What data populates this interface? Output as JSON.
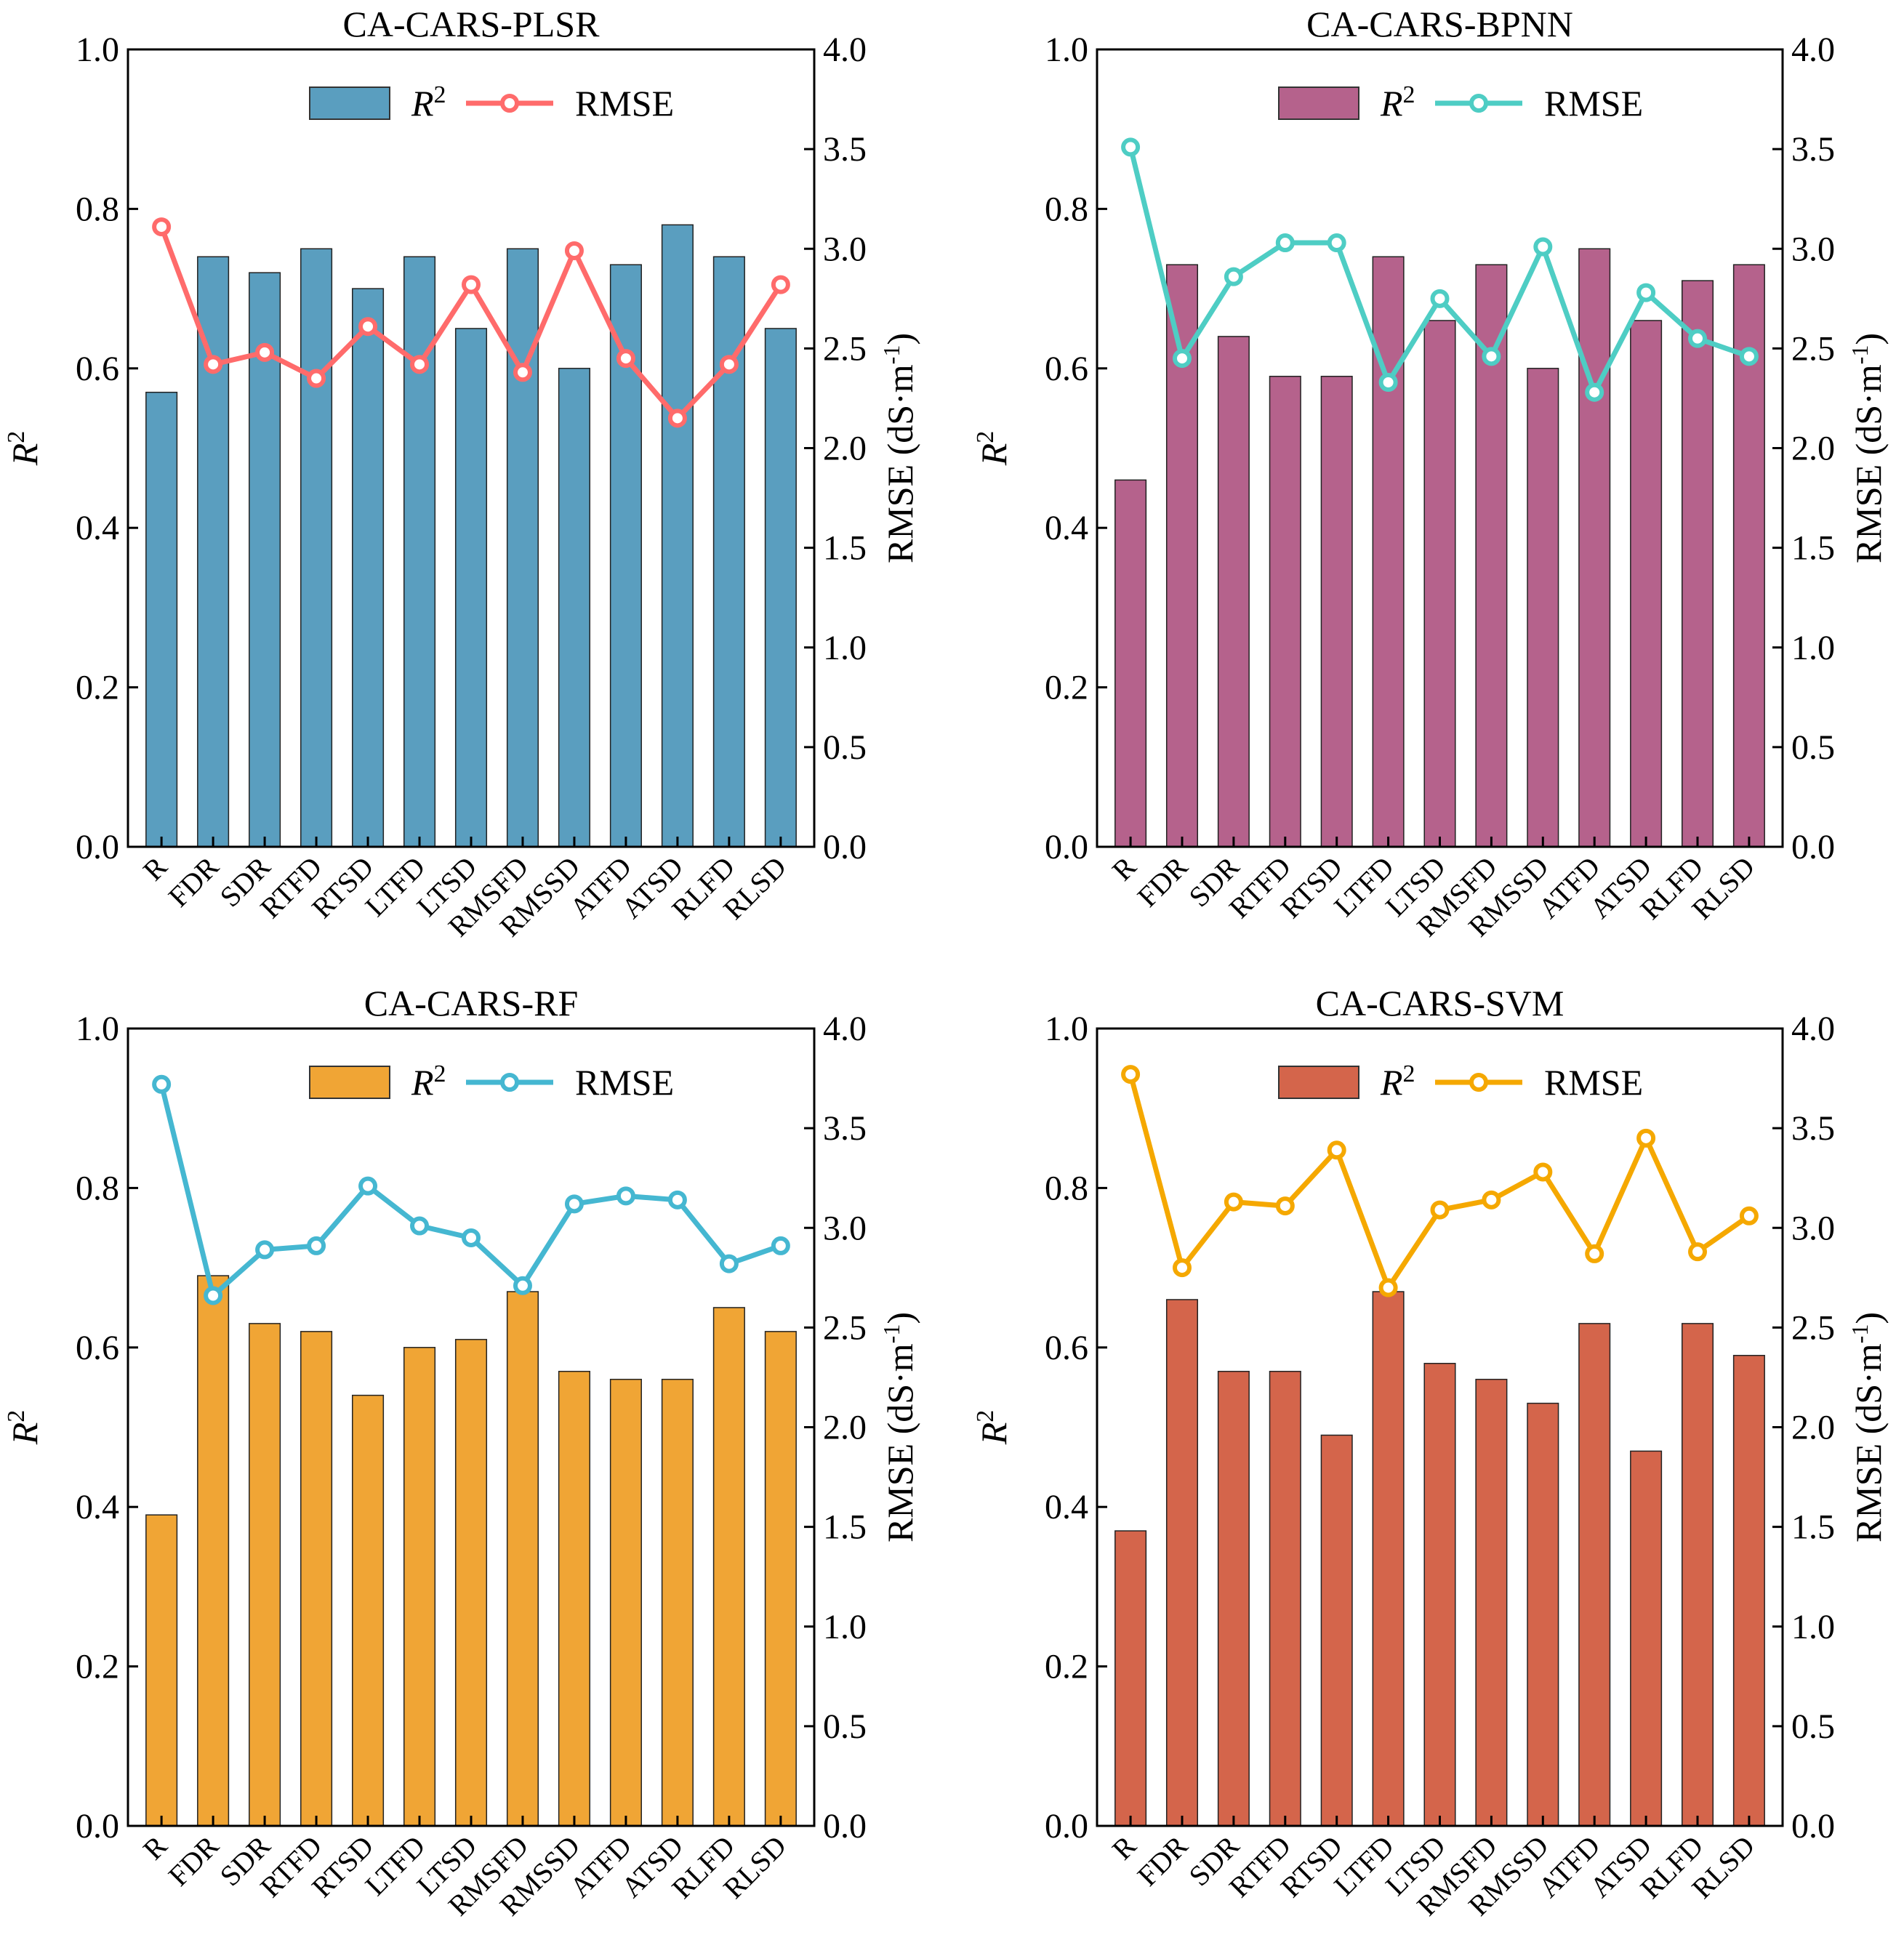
{
  "chart_data": [
    {
      "type": "bar",
      "title": "CA-CARS-PLSR",
      "categories": [
        "R",
        "FDR",
        "SDR",
        "RTFD",
        "RTSD",
        "LTFD",
        "LTSD",
        "RMSFD",
        "RMSSD",
        "ATFD",
        "ATSD",
        "RLFD",
        "RLSD"
      ],
      "series": [
        {
          "name": "R2",
          "label": "R",
          "sup": "2",
          "kind": "bar",
          "axis": "left",
          "color": "#5a9ebf",
          "values": [
            0.57,
            0.74,
            0.72,
            0.75,
            0.7,
            0.74,
            0.65,
            0.75,
            0.6,
            0.73,
            0.78,
            0.74,
            0.65
          ]
        },
        {
          "name": "RMSE",
          "label": "RMSE",
          "kind": "line",
          "axis": "right",
          "color": "#ff6b6b",
          "values": [
            3.11,
            2.42,
            2.48,
            2.35,
            2.61,
            2.42,
            2.82,
            2.38,
            2.99,
            2.45,
            2.15,
            2.42,
            2.82
          ]
        }
      ],
      "ylabel": "R2",
      "ylabel_sup": "2",
      "ylim": [
        0,
        1.0
      ],
      "yticks": [
        "0.0",
        "0.2",
        "0.4",
        "0.6",
        "0.8",
        "1.0"
      ],
      "y2label": "RMSE (dS·m",
      "y2label_sup": "-1",
      "y2label_end": ")",
      "y2lim": [
        0,
        4.0
      ],
      "y2ticks": [
        "0.0",
        "0.5",
        "1.0",
        "1.5",
        "2.0",
        "2.5",
        "3.0",
        "3.5",
        "4.0"
      ],
      "legend": "top-right",
      "grid": false
    },
    {
      "type": "bar",
      "title": "CA-CARS-BPNN",
      "categories": [
        "R",
        "FDR",
        "SDR",
        "RTFD",
        "RTSD",
        "LTFD",
        "LTSD",
        "RMSFD",
        "RMSSD",
        "ATFD",
        "ATSD",
        "RLFD",
        "RLSD"
      ],
      "series": [
        {
          "name": "R2",
          "label": "R",
          "sup": "2",
          "kind": "bar",
          "axis": "left",
          "color": "#b5628c",
          "values": [
            0.46,
            0.73,
            0.64,
            0.59,
            0.59,
            0.74,
            0.66,
            0.73,
            0.6,
            0.75,
            0.66,
            0.71,
            0.73
          ]
        },
        {
          "name": "RMSE",
          "label": "RMSE",
          "kind": "line",
          "axis": "right",
          "color": "#4ecdc4",
          "values": [
            3.51,
            2.45,
            2.86,
            3.03,
            3.03,
            2.33,
            2.75,
            2.46,
            3.01,
            2.28,
            2.78,
            2.55,
            2.46
          ]
        }
      ],
      "ylabel": "R2",
      "ylabel_sup": "2",
      "ylim": [
        0,
        1.0
      ],
      "yticks": [
        "0.0",
        "0.2",
        "0.4",
        "0.6",
        "0.8",
        "1.0"
      ],
      "y2label": "RMSE (dS·m",
      "y2label_sup": "-1",
      "y2label_end": ")",
      "y2lim": [
        0,
        4.0
      ],
      "y2ticks": [
        "0.0",
        "0.5",
        "1.0",
        "1.5",
        "2.0",
        "2.5",
        "3.0",
        "3.5",
        "4.0"
      ],
      "legend": "top-right",
      "grid": false
    },
    {
      "type": "bar",
      "title": "CA-CARS-RF",
      "categories": [
        "R",
        "FDR",
        "SDR",
        "RTFD",
        "RTSD",
        "LTFD",
        "LTSD",
        "RMSFD",
        "RMSSD",
        "ATFD",
        "ATSD",
        "RLFD",
        "RLSD"
      ],
      "series": [
        {
          "name": "R2",
          "label": "R",
          "sup": "2",
          "kind": "bar",
          "axis": "left",
          "color": "#f0a535",
          "values": [
            0.39,
            0.69,
            0.63,
            0.62,
            0.54,
            0.6,
            0.61,
            0.67,
            0.57,
            0.56,
            0.56,
            0.65,
            0.62
          ]
        },
        {
          "name": "RMSE",
          "label": "RMSE",
          "kind": "line",
          "axis": "right",
          "color": "#45b7d1",
          "values": [
            3.72,
            2.66,
            2.89,
            2.91,
            3.21,
            3.01,
            2.95,
            2.71,
            3.12,
            3.16,
            3.14,
            2.82,
            2.91
          ]
        }
      ],
      "ylabel": "R2",
      "ylabel_sup": "2",
      "ylim": [
        0,
        1.0
      ],
      "yticks": [
        "0.0",
        "0.2",
        "0.4",
        "0.6",
        "0.8",
        "1.0"
      ],
      "y2label": "RMSE (dS·m",
      "y2label_sup": "-1",
      "y2label_end": ")",
      "y2lim": [
        0,
        4.0
      ],
      "y2ticks": [
        "0.0",
        "0.5",
        "1.0",
        "1.5",
        "2.0",
        "2.5",
        "3.0",
        "3.5",
        "4.0"
      ],
      "legend": "top-right",
      "grid": false
    },
    {
      "type": "bar",
      "title": "CA-CARS-SVM",
      "categories": [
        "R",
        "FDR",
        "SDR",
        "RTFD",
        "RTSD",
        "LTFD",
        "LTSD",
        "RMSFD",
        "RMSSD",
        "ATFD",
        "ATSD",
        "RLFD",
        "RLSD"
      ],
      "series": [
        {
          "name": "R2",
          "label": "R",
          "sup": "2",
          "kind": "bar",
          "axis": "left",
          "color": "#d4654b",
          "values": [
            0.37,
            0.66,
            0.57,
            0.57,
            0.49,
            0.67,
            0.58,
            0.56,
            0.53,
            0.63,
            0.47,
            0.63,
            0.59
          ]
        },
        {
          "name": "RMSE",
          "label": "RMSE",
          "kind": "line",
          "axis": "right",
          "color": "#f5a800",
          "values": [
            3.77,
            2.8,
            3.13,
            3.11,
            3.39,
            2.7,
            3.09,
            3.14,
            3.28,
            2.87,
            3.45,
            2.88,
            3.06
          ]
        }
      ],
      "ylabel": "R2",
      "ylabel_sup": "2",
      "ylim": [
        0,
        1.0
      ],
      "yticks": [
        "0.0",
        "0.2",
        "0.4",
        "0.6",
        "0.8",
        "1.0"
      ],
      "y2label": "RMSE (dS·m",
      "y2label_sup": "-1",
      "y2label_end": ")",
      "y2lim": [
        0,
        4.0
      ],
      "y2ticks": [
        "0.0",
        "0.5",
        "1.0",
        "1.5",
        "2.0",
        "2.5",
        "3.0",
        "3.5",
        "4.0"
      ],
      "legend": "top-right",
      "grid": false
    }
  ]
}
